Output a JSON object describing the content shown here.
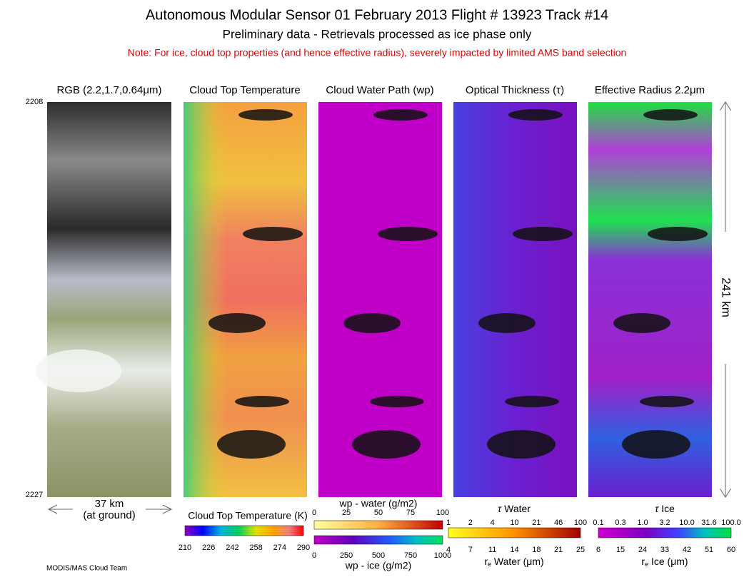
{
  "header": {
    "title": "Autonomous Modular Sensor  01 February 2013  Flight # 13923 Track #14",
    "subtitle": "Preliminary data - Retrievals processed as ice phase only",
    "note": "Note: For ice, cloud top properties (and hence effective radius), severely impacted by limited AMS band selection"
  },
  "panels": [
    "RGB (2.2,1.7,0.64μm)",
    "Cloud Top Temperature",
    "Cloud Water Path (wp)",
    "Optical Thickness (τ)",
    "Effective Radius 2.2μm"
  ],
  "scan": {
    "start": "2208",
    "end": "2227",
    "length": "241 km",
    "width": "37 km",
    "width_note": "(at ground)"
  },
  "colorbars": [
    {
      "title": "Cloud Top Temperature (K)",
      "ticks": [
        "210",
        "226",
        "242",
        "258",
        "274",
        "290"
      ]
    },
    {
      "title": "wp - water (g/m2)",
      "ticks": [
        "0",
        "25",
        "50",
        "75",
        "100"
      ]
    },
    {
      "title": "wp - ice (g/m2)",
      "ticks": [
        "0",
        "250",
        "500",
        "750",
        "1000"
      ]
    },
    {
      "symbol": "τ",
      "title": "Water",
      "ticks": [
        "1",
        "2",
        "4",
        "10",
        "21",
        "46",
        "100"
      ],
      "bottom_symbol": "r",
      "bottom_subscript": "e",
      "bottom_title": "Water (μm)",
      "bottom_ticks": [
        "4",
        "7",
        "11",
        "14",
        "18",
        "21",
        "25"
      ]
    },
    {
      "symbol": "τ",
      "title": "Ice",
      "ticks": [
        "0.1",
        "0.3",
        "1.0",
        "3.2",
        "10.0",
        "31.6",
        "100.0"
      ],
      "bottom_symbol": "r",
      "bottom_subscript": "e",
      "bottom_title": "Ice (μm)",
      "bottom_ticks": [
        "6",
        "15",
        "24",
        "33",
        "42",
        "51",
        "60"
      ]
    }
  ],
  "credit": "MODIS/MAS Cloud Team"
}
